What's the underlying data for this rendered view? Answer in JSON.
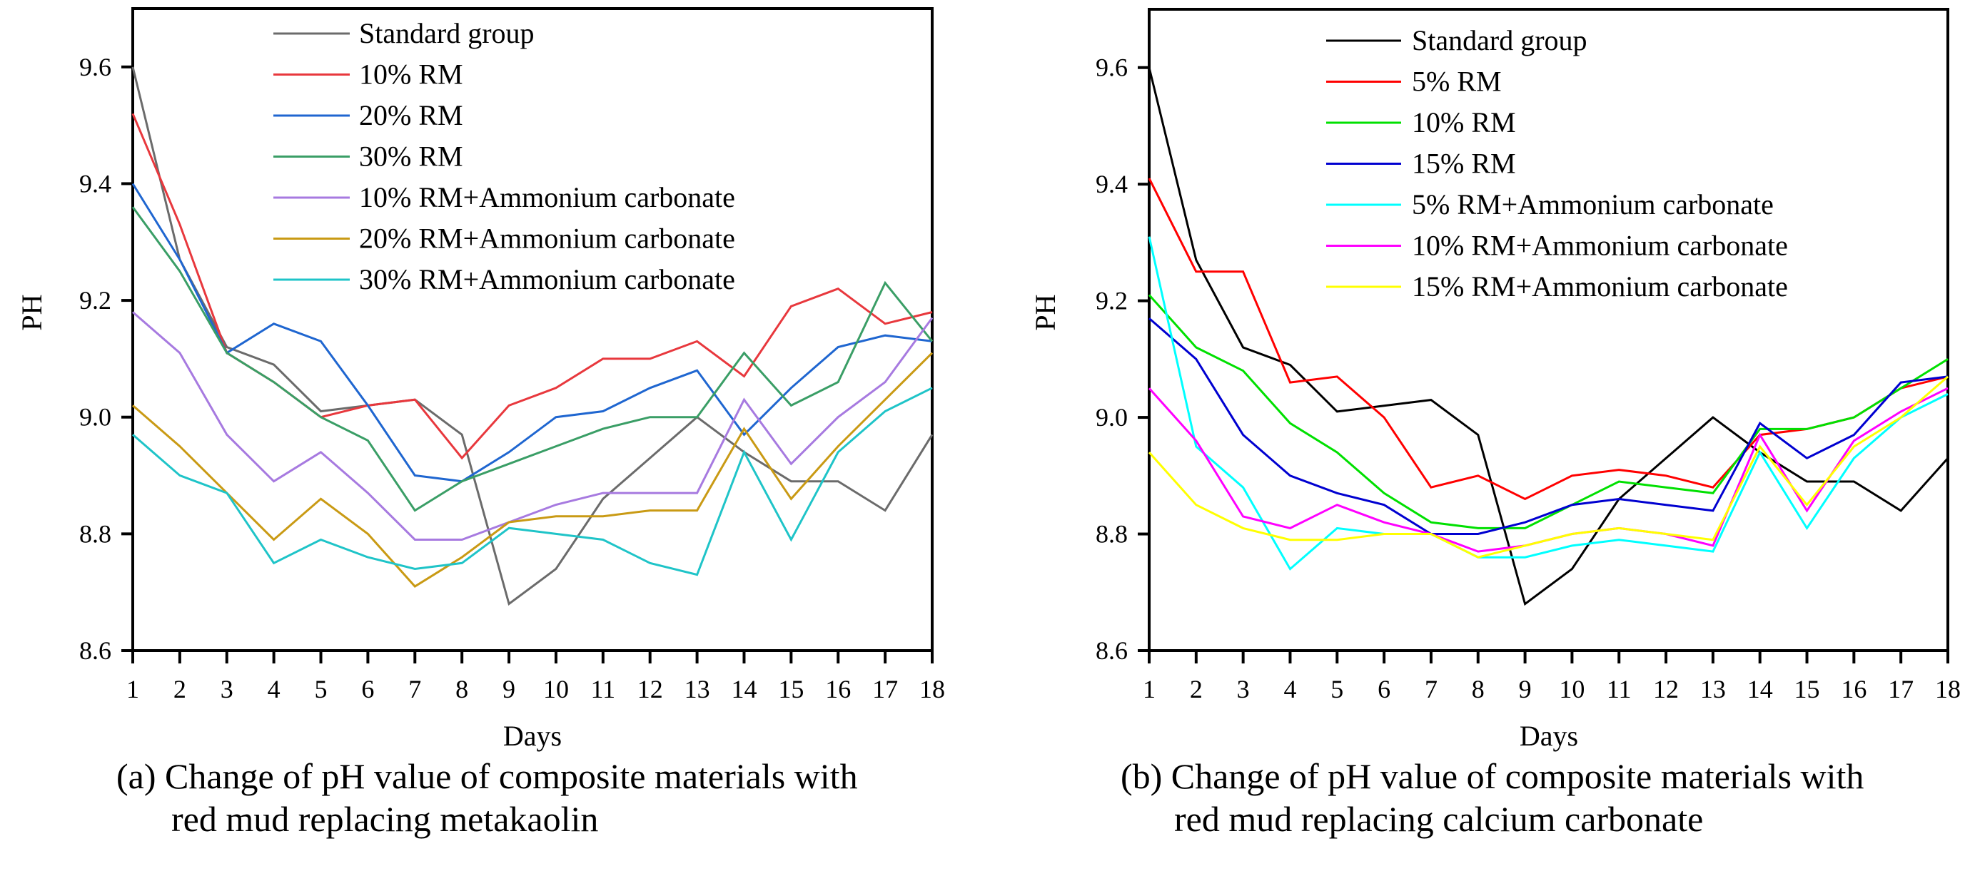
{
  "chart_data": [
    {
      "type": "line",
      "panel": "a",
      "caption": [
        "(a) Change of pH value of composite materials with",
        "red mud replacing metakaolin"
      ],
      "xlabel": "Days",
      "ylabel": "PH",
      "x": [
        1,
        2,
        3,
        4,
        5,
        6,
        7,
        8,
        9,
        10,
        11,
        12,
        13,
        14,
        15,
        16,
        17,
        18
      ],
      "xlim": [
        1,
        18
      ],
      "ylim": [
        8.6,
        9.7
      ],
      "yticks": [
        8.6,
        8.8,
        9.0,
        9.2,
        9.4,
        9.6
      ],
      "ytick_labels": [
        "8.6",
        "8.8",
        "9.0",
        "9.2",
        "9.4",
        "9.6"
      ],
      "grid": false,
      "legend_position": "top-center",
      "series": [
        {
          "name": "Standard group",
          "color": "#6b6b6b",
          "values": [
            9.6,
            9.27,
            9.12,
            9.09,
            9.01,
            9.02,
            9.03,
            8.97,
            8.68,
            8.74,
            8.86,
            8.93,
            9.0,
            8.94,
            8.89,
            8.89,
            8.84,
            8.97
          ]
        },
        {
          "name": "10% RM",
          "color": "#e8383d",
          "values": [
            9.52,
            9.33,
            9.11,
            9.06,
            9.0,
            9.02,
            9.03,
            8.93,
            9.02,
            9.05,
            9.1,
            9.1,
            9.13,
            9.07,
            9.19,
            9.22,
            9.16,
            9.18
          ]
        },
        {
          "name": "20% RM",
          "color": "#1f66d0",
          "values": [
            9.4,
            9.27,
            9.11,
            9.16,
            9.13,
            9.02,
            8.9,
            8.89,
            8.94,
            9.0,
            9.01,
            9.05,
            9.08,
            8.97,
            9.05,
            9.12,
            9.14,
            9.13
          ]
        },
        {
          "name": "30% RM",
          "color": "#3a9e66",
          "values": [
            9.36,
            9.25,
            9.11,
            9.06,
            9.0,
            8.96,
            8.84,
            8.89,
            8.92,
            8.95,
            8.98,
            9.0,
            9.0,
            9.11,
            9.02,
            9.06,
            9.23,
            9.13
          ]
        },
        {
          "name": "10% RM+Ammonium carbonate",
          "color": "#a77ae0",
          "values": [
            9.18,
            9.11,
            8.97,
            8.89,
            8.94,
            8.87,
            8.79,
            8.79,
            8.82,
            8.85,
            8.87,
            8.87,
            8.87,
            9.03,
            8.92,
            9.0,
            9.06,
            9.17
          ]
        },
        {
          "name": "20% RM+Ammonium carbonate",
          "color": "#c99a14",
          "values": [
            9.02,
            8.95,
            8.87,
            8.79,
            8.86,
            8.8,
            8.71,
            8.76,
            8.82,
            8.83,
            8.83,
            8.84,
            8.84,
            8.98,
            8.86,
            8.95,
            9.03,
            9.11
          ]
        },
        {
          "name": "30% RM+Ammonium carbonate",
          "color": "#1fc4c8",
          "values": [
            8.97,
            8.9,
            8.87,
            8.75,
            8.79,
            8.76,
            8.74,
            8.75,
            8.81,
            8.8,
            8.79,
            8.75,
            8.73,
            8.94,
            8.79,
            8.94,
            9.01,
            9.05
          ]
        }
      ]
    },
    {
      "type": "line",
      "panel": "b",
      "caption": [
        "(b) Change of pH value of composite materials with",
        "red mud replacing calcium carbonate"
      ],
      "xlabel": "Days",
      "ylabel": "PH",
      "x": [
        1,
        2,
        3,
        4,
        5,
        6,
        7,
        8,
        9,
        10,
        11,
        12,
        13,
        14,
        15,
        16,
        17,
        18
      ],
      "xlim": [
        1,
        18
      ],
      "ylim": [
        8.6,
        9.7
      ],
      "yticks": [
        8.6,
        8.8,
        9.0,
        9.2,
        9.4,
        9.6
      ],
      "ytick_labels": [
        "8.6",
        "8.8",
        "9.0",
        "9.2",
        "9.4",
        "9.6"
      ],
      "grid": false,
      "legend_position": "top-center",
      "series": [
        {
          "name": "Standard group",
          "color": "#000000",
          "values": [
            9.6,
            9.27,
            9.12,
            9.09,
            9.01,
            9.02,
            9.03,
            8.97,
            8.68,
            8.74,
            8.86,
            8.93,
            9.0,
            8.94,
            8.89,
            8.89,
            8.84,
            8.93
          ]
        },
        {
          "name": "5% RM",
          "color": "#ff0000",
          "values": [
            9.41,
            9.25,
            9.25,
            9.06,
            9.07,
            9.0,
            8.88,
            8.9,
            8.86,
            8.9,
            8.91,
            8.9,
            8.88,
            8.97,
            8.98,
            9.0,
            9.05,
            9.07
          ]
        },
        {
          "name": "10% RM",
          "color": "#00e000",
          "values": [
            9.21,
            9.12,
            9.08,
            8.99,
            8.94,
            8.87,
            8.82,
            8.81,
            8.81,
            8.85,
            8.89,
            8.88,
            8.87,
            8.98,
            8.98,
            9.0,
            9.05,
            9.1
          ]
        },
        {
          "name": "15% RM",
          "color": "#0000d0",
          "values": [
            9.17,
            9.1,
            8.97,
            8.9,
            8.87,
            8.85,
            8.8,
            8.8,
            8.82,
            8.85,
            8.86,
            8.85,
            8.84,
            8.99,
            8.93,
            8.97,
            9.06,
            9.07
          ]
        },
        {
          "name": "5% RM+Ammonium carbonate",
          "color": "#00ffff",
          "values": [
            9.31,
            8.95,
            8.88,
            8.74,
            8.81,
            8.8,
            8.8,
            8.76,
            8.76,
            8.78,
            8.79,
            8.78,
            8.77,
            8.94,
            8.81,
            8.93,
            9.0,
            9.04
          ]
        },
        {
          "name": "10% RM+Ammonium carbonate",
          "color": "#ff00ff",
          "values": [
            9.05,
            8.96,
            8.83,
            8.81,
            8.85,
            8.82,
            8.8,
            8.77,
            8.78,
            8.8,
            8.81,
            8.8,
            8.78,
            8.97,
            8.84,
            8.96,
            9.01,
            9.05
          ]
        },
        {
          "name": "15% RM+Ammonium carbonate",
          "color": "#ffff00",
          "values": [
            8.94,
            8.85,
            8.81,
            8.79,
            8.79,
            8.8,
            8.8,
            8.76,
            8.78,
            8.8,
            8.81,
            8.8,
            8.79,
            8.95,
            8.85,
            8.95,
            9.0,
            9.07
          ]
        }
      ]
    }
  ]
}
